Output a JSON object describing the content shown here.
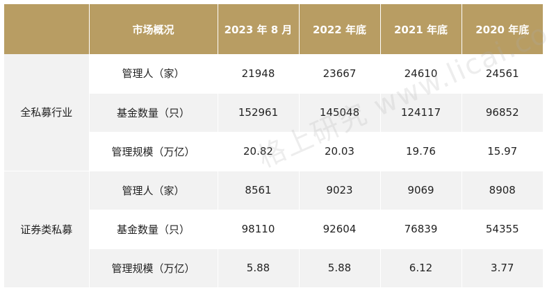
{
  "header": {
    "corner": "",
    "metric_col": "市场概况",
    "periods": [
      "2023 年 8 月",
      "2022 年底",
      "2021 年底",
      "2020 年底"
    ]
  },
  "groups": [
    {
      "category": "全私募行业",
      "rows": [
        {
          "metric": "管理人（家）",
          "values": [
            "21948",
            "23667",
            "24610",
            "24561"
          ]
        },
        {
          "metric": "基金数量（只）",
          "values": [
            "152961",
            "145048",
            "124117",
            "96852"
          ]
        },
        {
          "metric": "管理规模（万亿）",
          "values": [
            "20.82",
            "20.03",
            "19.76",
            "15.97"
          ]
        }
      ]
    },
    {
      "category": "证券类私募",
      "rows": [
        {
          "metric": "管理人（家）",
          "values": [
            "8561",
            "9023",
            "9069",
            "8908"
          ]
        },
        {
          "metric": "基金数量（只）",
          "values": [
            "98110",
            "92604",
            "76839",
            "54355"
          ]
        },
        {
          "metric": "管理规模（万亿）",
          "values": [
            "5.88",
            "5.88",
            "6.12",
            "3.77"
          ]
        }
      ]
    }
  ],
  "watermark": "格上研究 www.licai.com",
  "colors": {
    "header_bg": "#b89d63",
    "header_text": "#ffffff",
    "shade_bg": "#f2f2f2"
  }
}
